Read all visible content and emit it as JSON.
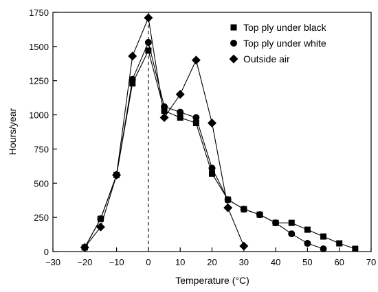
{
  "chart_data": {
    "type": "line",
    "title": "",
    "xlabel": "Temperature (°C)",
    "ylabel": "Hours/year",
    "xlim": [
      -30,
      70
    ],
    "ylim": [
      0,
      1750
    ],
    "x_ticks": [
      -30,
      -20,
      -10,
      0,
      10,
      20,
      30,
      40,
      50,
      60,
      70
    ],
    "x_tick_labels": [
      "−30",
      "−20",
      "−10",
      "0",
      "10",
      "20",
      "30",
      "40",
      "50",
      "60",
      "70"
    ],
    "y_ticks": [
      0,
      250,
      500,
      750,
      1000,
      1250,
      1500,
      1750
    ],
    "y_tick_labels": [
      "0",
      "250",
      "500",
      "750",
      "1000",
      "1250",
      "1500",
      "1750"
    ],
    "grid": false,
    "legend_position": "top-right",
    "reference_line": {
      "x": 0,
      "style": "dashed"
    },
    "series": [
      {
        "name": "Top ply under black",
        "marker": "square",
        "color": "#000000",
        "points": [
          {
            "x": -20,
            "y": 30
          },
          {
            "x": -15,
            "y": 240
          },
          {
            "x": -10,
            "y": 560
          },
          {
            "x": -5,
            "y": 1230
          },
          {
            "x": 0,
            "y": 1470
          },
          {
            "x": 5,
            "y": 1030
          },
          {
            "x": 10,
            "y": 980
          },
          {
            "x": 15,
            "y": 940
          },
          {
            "x": 20,
            "y": 570
          },
          {
            "x": 25,
            "y": 380
          },
          {
            "x": 30,
            "y": 310
          },
          {
            "x": 35,
            "y": 270
          },
          {
            "x": 40,
            "y": 210
          },
          {
            "x": 45,
            "y": 210
          },
          {
            "x": 50,
            "y": 160
          },
          {
            "x": 55,
            "y": 110
          },
          {
            "x": 60,
            "y": 60
          },
          {
            "x": 65,
            "y": 20
          }
        ]
      },
      {
        "name": "Top ply under white",
        "marker": "circle",
        "color": "#000000",
        "points": [
          {
            "x": -20,
            "y": 30
          },
          {
            "x": -15,
            "y": 240
          },
          {
            "x": -10,
            "y": 560
          },
          {
            "x": -5,
            "y": 1260
          },
          {
            "x": 0,
            "y": 1530
          },
          {
            "x": 5,
            "y": 1060
          },
          {
            "x": 10,
            "y": 1020
          },
          {
            "x": 15,
            "y": 980
          },
          {
            "x": 20,
            "y": 610
          },
          {
            "x": 25,
            "y": 380
          },
          {
            "x": 30,
            "y": 310
          },
          {
            "x": 35,
            "y": 270
          },
          {
            "x": 40,
            "y": 210
          },
          {
            "x": 45,
            "y": 130
          },
          {
            "x": 50,
            "y": 60
          },
          {
            "x": 55,
            "y": 20
          }
        ]
      },
      {
        "name": "Outside air",
        "marker": "diamond",
        "color": "#000000",
        "points": [
          {
            "x": -20,
            "y": 30
          },
          {
            "x": -15,
            "y": 180
          },
          {
            "x": -10,
            "y": 560
          },
          {
            "x": -5,
            "y": 1430
          },
          {
            "x": 0,
            "y": 1710
          },
          {
            "x": 5,
            "y": 980
          },
          {
            "x": 10,
            "y": 1150
          },
          {
            "x": 15,
            "y": 1400
          },
          {
            "x": 20,
            "y": 940
          },
          {
            "x": 25,
            "y": 320
          },
          {
            "x": 30,
            "y": 40
          }
        ]
      }
    ]
  }
}
